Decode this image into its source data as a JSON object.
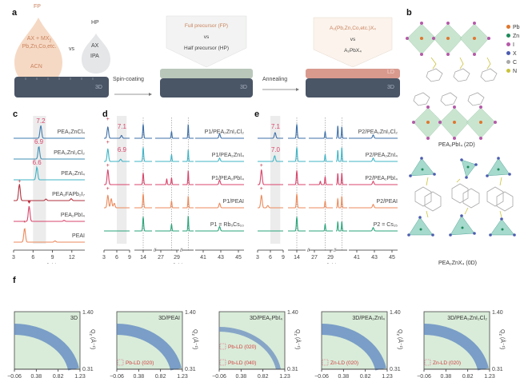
{
  "panels": {
    "a": {
      "letter": "a",
      "fp_drop": {
        "title": "FP",
        "line1": "AX + MX",
        "line1_sub": "2",
        "line2": "Pb,Zn,Co,etc.",
        "line3": "ACN"
      },
      "vs": "vs",
      "hp_drop": {
        "title": "HP",
        "line1": "AX",
        "line2": "IPA"
      },
      "substrate_label": "3D",
      "step1": "Spin-coating",
      "step2": "Annealing",
      "callout1": {
        "line1": "Full precursor (FP)",
        "line2": "vs",
        "line3": "Half precursor (HP)"
      },
      "callout2": {
        "line1": "A₂(Pb,Zn,Co,etc.)X₄",
        "line2": "vs",
        "line3": "A₂PbX₄"
      },
      "ld_label": "LD",
      "colors": {
        "substrate": "#4a5566",
        "fp": "#f6d9c4",
        "fp_text": "#c9825d",
        "hp": "#e4e6e8",
        "intermediate": "#b9c7bb",
        "ld": "#d99a8e",
        "callout_bg": "#fbf3ec"
      }
    },
    "b": {
      "letter": "b",
      "legend": [
        {
          "label": "Pb",
          "color": "#e0762d"
        },
        {
          "label": "Zn",
          "color": "#1f8a5a"
        },
        {
          "label": "I",
          "color": "#b55aa8"
        },
        {
          "label": "X",
          "color": "#4c5cb0"
        },
        {
          "label": "C",
          "color": "#a9a9a9"
        },
        {
          "label": "N",
          "color": "#c9c23a"
        }
      ],
      "caption_2d": "PEA₂PbI₄ (2D)",
      "caption_0d": "PEA₂ZnX₄ (0D)"
    },
    "c": {
      "letter": "c"
    },
    "d": {
      "letter": "d"
    },
    "e": {
      "letter": "e"
    },
    "f": {
      "letter": "f"
    }
  },
  "chart_data": [
    {
      "id": "c",
      "type": "line",
      "title": "",
      "xlabel": "2θ (°)",
      "ylabel": "",
      "xlim": [
        3,
        14
      ],
      "xticks": [
        "3",
        "6",
        "9",
        "12"
      ],
      "shaded_region": [
        6,
        8
      ],
      "series": [
        {
          "name": "PEA₂ZnCl₄",
          "color": "#3e7bb0",
          "peaks": [
            [
              7.2,
              1.0
            ]
          ],
          "annotation": "7.2"
        },
        {
          "name": "PEA₂ZnI₂Cl₂",
          "color": "#3f8fb5",
          "peaks": [
            [
              6.9,
              1.0
            ]
          ],
          "annotation": "6.9"
        },
        {
          "name": "PEA₂ZnI₄",
          "color": "#3fb4c6",
          "peaks": [
            [
              6.6,
              1.0
            ]
          ],
          "annotation": "6.6"
        },
        {
          "name": "PEA₂FAPb₂I₇",
          "color": "#b0333f",
          "peaks": [
            [
              3.9,
              1.3
            ],
            [
              8.0,
              0.12
            ],
            [
              11.9,
              0.15
            ]
          ],
          "marker": "+"
        },
        {
          "name": "PEA₂PbI₄",
          "color": "#d9456b",
          "peaks": [
            [
              5.4,
              1.2
            ],
            [
              10.8,
              0.08
            ]
          ],
          "marker": "♥"
        },
        {
          "name": "PEAI",
          "color": "#ec8a5c",
          "peaks": [
            [
              4.7,
              1.1
            ],
            [
              9.4,
              0.1
            ]
          ],
          "marker": "*"
        }
      ]
    },
    {
      "id": "d",
      "type": "line",
      "xlabel": "2θ (°)",
      "xticks": [
        "3",
        "6",
        "9",
        "14",
        "27",
        "29",
        "41",
        "43",
        "45"
      ],
      "shaded_region": [
        6,
        8
      ],
      "reference_lines": [
        14,
        28.4,
        31.8
      ],
      "series": [
        {
          "name": "P1/PEA₂ZnI₂Cl₂",
          "color": "#3e6fa8",
          "annotation": "7.1",
          "marker": "+"
        },
        {
          "name": "P1/PEA₂ZnI₄",
          "color": "#3fb4c6",
          "annotation": "6.9",
          "marker": "+"
        },
        {
          "name": "P1/PEA₂PbI₄",
          "color": "#d9456b",
          "marker": "+"
        },
        {
          "name": "P1/PEAI",
          "color": "#ec8a5c",
          "marker": "+ * ♥"
        },
        {
          "name": "P1 = Rb₅Cs₁₀",
          "color": "#2aa57a"
        }
      ]
    },
    {
      "id": "e",
      "type": "line",
      "xlabel": "2θ (°)",
      "xticks": [
        "3",
        "6",
        "9",
        "14",
        "27",
        "29",
        "41",
        "43",
        "45"
      ],
      "shaded_region": [
        6,
        8
      ],
      "reference_lines": [
        14,
        28.4,
        31.8
      ],
      "series": [
        {
          "name": "P2/PEA₂ZnI₂Cl₂",
          "color": "#3e6fa8",
          "annotation": "7.1"
        },
        {
          "name": "P2/PEA₂ZnI₄",
          "color": "#3fb4c6",
          "annotation": "7.0"
        },
        {
          "name": "P2/PEA₂PbI₄",
          "color": "#d9456b",
          "marker": "+"
        },
        {
          "name": "P2/PEAI",
          "color": "#ec8a5c",
          "marker": "+ * ♥"
        },
        {
          "name": "P2 = Cs₁₅",
          "color": "#2aa57a"
        }
      ]
    },
    {
      "id": "f",
      "type": "heatmap",
      "xlabel": "Qₓ (Å⁻¹)",
      "ylabel": "Qₓ (Å⁻¹)",
      "xticks": [
        "−0.06",
        "0.38",
        "0.82",
        "1.23"
      ],
      "yticks": [
        "0.31",
        "1.40"
      ],
      "maps": [
        {
          "title": "3D",
          "annotations": []
        },
        {
          "title": "3D/PEAI",
          "annotations": [
            "Pb-LD (020)"
          ]
        },
        {
          "title": "3D/PEA₂PbI₄",
          "annotations": [
            "Pb-LD (040)",
            "Pb-LD (020)"
          ]
        },
        {
          "title": "3D/PEA₂ZnI₄",
          "annotations": [
            "Zn-LD (020)"
          ]
        },
        {
          "title": "3D/PEA₂ZnI₂Cl₂",
          "annotations": [
            "Zn-LD (020)"
          ]
        }
      ]
    }
  ],
  "axis_labels": {
    "two_theta": "2θ (°)",
    "qx": "Q",
    "qx_sub": "x",
    "qz": "Q",
    "qz_sub": "z",
    "inv_ang": " (Å⁻¹)"
  }
}
